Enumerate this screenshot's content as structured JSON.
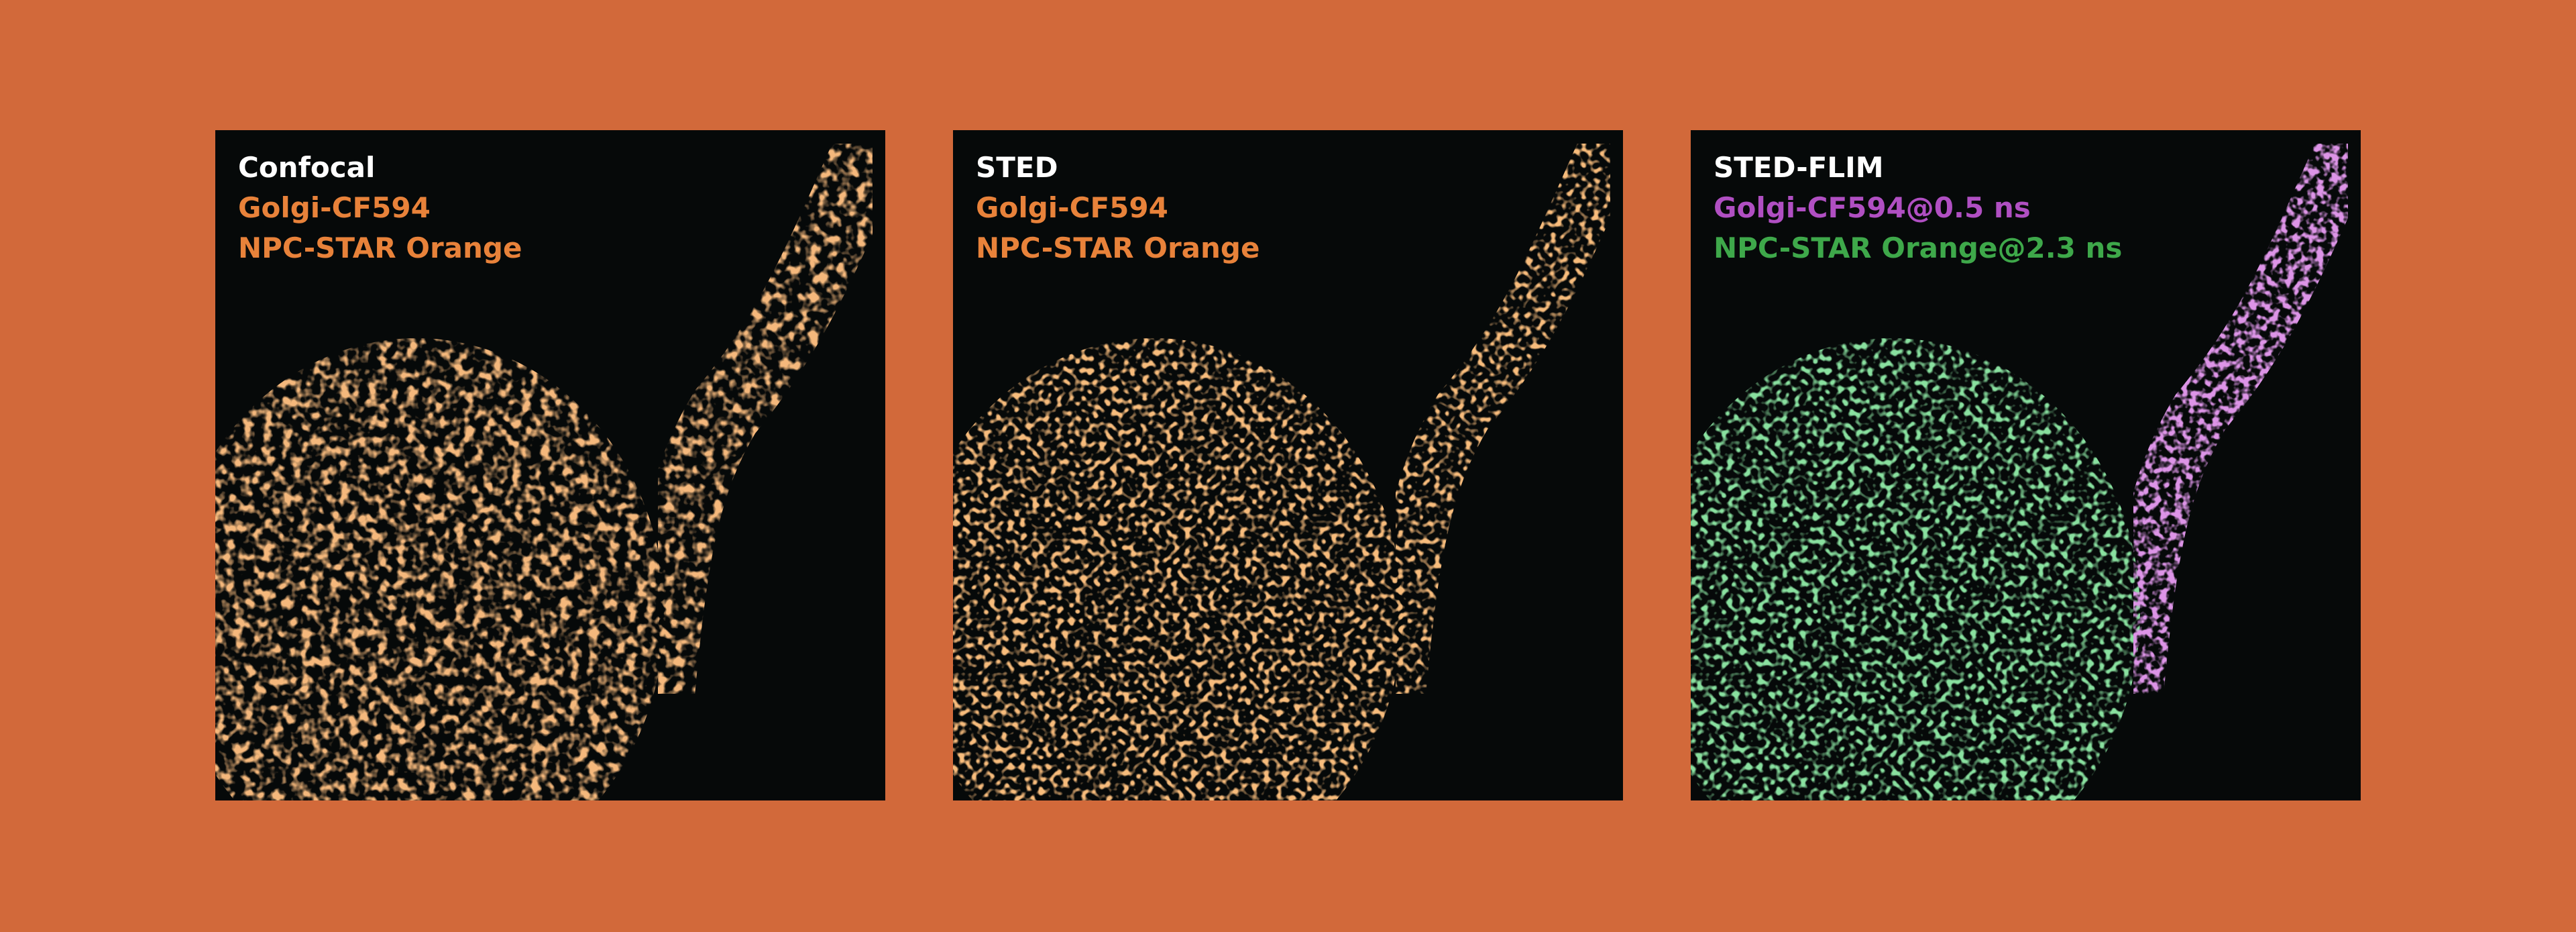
{
  "panels": [
    {
      "title": "Confocal",
      "labels": [
        {
          "text": "Golgi-CF594",
          "color": "#e8823a"
        },
        {
          "text": "NPC-STAR Orange",
          "color": "#e8823a"
        }
      ]
    },
    {
      "title": "STED",
      "labels": [
        {
          "text": "Golgi-CF594",
          "color": "#e8823a"
        },
        {
          "text": "NPC-STAR Orange",
          "color": "#e8823a"
        }
      ]
    },
    {
      "title": "STED-FLIM",
      "labels": [
        {
          "text": "Golgi-CF594@0.5 ns",
          "color": "#b04fc2"
        },
        {
          "text": "NPC-STAR Orange@2.3 ns",
          "color": "#3ea84a"
        }
      ]
    }
  ]
}
